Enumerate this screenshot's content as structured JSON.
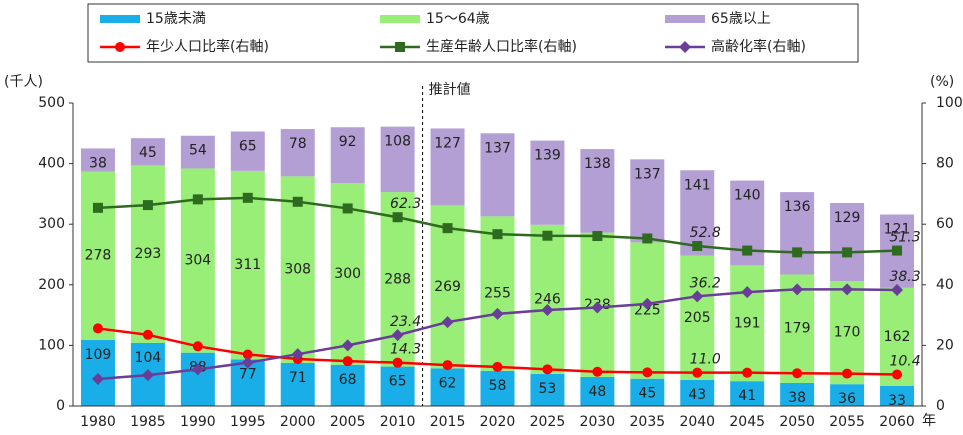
{
  "chart_data": {
    "type": "bar",
    "categories": [
      "1980",
      "1985",
      "1990",
      "1995",
      "2000",
      "2005",
      "2010",
      "2015",
      "2020",
      "2025",
      "2030",
      "2035",
      "2040",
      "2045",
      "2050",
      "2055",
      "2060"
    ],
    "series": [
      {
        "name": "15歳未満",
        "color": "#1aaee8",
        "values": [
          109,
          104,
          88,
          77,
          71,
          68,
          65,
          62,
          58,
          53,
          48,
          45,
          43,
          41,
          38,
          36,
          33
        ]
      },
      {
        "name": "15〜64歳",
        "color": "#99ee77",
        "values": [
          278,
          293,
          304,
          311,
          308,
          300,
          288,
          269,
          255,
          246,
          238,
          225,
          205,
          191,
          179,
          170,
          162
        ]
      },
      {
        "name": "65歳以上",
        "color": "#b49fd4",
        "values": [
          38,
          45,
          54,
          65,
          78,
          92,
          108,
          127,
          137,
          139,
          138,
          137,
          141,
          140,
          136,
          129,
          121
        ]
      },
      {
        "name": "年少人口比率(右軸)",
        "type": "line",
        "axis": "y2",
        "marker": "circle",
        "color": "#ff0000",
        "values": [
          25.6,
          23.5,
          19.7,
          17.0,
          15.5,
          14.8,
          14.3,
          13.5,
          12.9,
          12.1,
          11.3,
          11.1,
          11.0,
          11.0,
          10.8,
          10.7,
          10.4
        ],
        "value_labels": [
          null,
          null,
          null,
          null,
          null,
          null,
          "14.3",
          null,
          null,
          null,
          null,
          null,
          "11.0",
          null,
          null,
          null,
          "10.4"
        ]
      },
      {
        "name": "生産年齢人口比率(右軸)",
        "type": "line",
        "axis": "y2",
        "marker": "square",
        "color": "#2e6b1e",
        "values": [
          65.4,
          66.3,
          68.2,
          68.7,
          67.4,
          65.2,
          62.3,
          58.7,
          56.7,
          56.2,
          56.1,
          55.3,
          52.8,
          51.3,
          50.7,
          50.7,
          51.3
        ],
        "value_labels": [
          null,
          null,
          null,
          null,
          null,
          null,
          "62.3",
          null,
          null,
          null,
          null,
          null,
          "52.8",
          null,
          null,
          null,
          "51.3"
        ]
      },
      {
        "name": "高齢化率(右軸)",
        "type": "line",
        "axis": "y2",
        "marker": "diamond",
        "color": "#6a3d9a",
        "values": [
          8.9,
          10.2,
          12.1,
          14.3,
          17.1,
          20.0,
          23.4,
          27.7,
          30.4,
          31.7,
          32.5,
          33.7,
          36.2,
          37.6,
          38.5,
          38.5,
          38.3
        ],
        "value_labels": [
          null,
          null,
          null,
          null,
          null,
          null,
          "23.4",
          null,
          null,
          null,
          null,
          null,
          "36.2",
          null,
          null,
          null,
          "38.3"
        ]
      }
    ],
    "ylabel": "(千人)",
    "y2label": "(%)",
    "xlabel": "年",
    "annotation": "推計値",
    "ylim": [
      0,
      500
    ],
    "yticks": [
      0,
      100,
      200,
      300,
      400,
      500
    ],
    "y2lim": [
      0,
      100
    ],
    "y2ticks": [
      0,
      20,
      40,
      60,
      80,
      100
    ],
    "grid": false
  }
}
